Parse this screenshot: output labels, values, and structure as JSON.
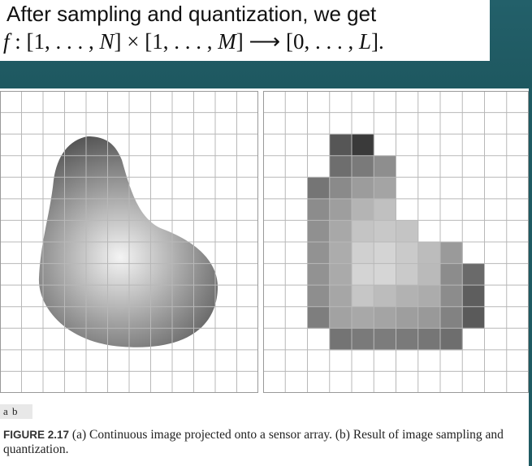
{
  "slide": {
    "title_line1": "After sampling and quantization, we get",
    "formula": {
      "f": "f",
      "colon": " : [1, . . . , ",
      "N": "N",
      "times": "] × [1, . . . , ",
      "M": "M",
      "arrow": "] ⟶ [0, . . . , ",
      "L": "L",
      "end": "]."
    }
  },
  "figure": {
    "sublabels": "a b",
    "caption_label": "FIGURE 2.17",
    "caption_text": " (a) Continuous image projected onto a sensor array. (b) Result of image sampling and quantization."
  },
  "grid": {
    "cols": 12,
    "rows": 14,
    "line_color": "#b8b8b8"
  },
  "quantized_cells": [
    {
      "r": 2,
      "c": 3,
      "v": "#565656"
    },
    {
      "r": 2,
      "c": 4,
      "v": "#3a3a3a"
    },
    {
      "r": 3,
      "c": 3,
      "v": "#6e6e6e"
    },
    {
      "r": 3,
      "c": 4,
      "v": "#7a7a7a"
    },
    {
      "r": 3,
      "c": 5,
      "v": "#8e8e8e"
    },
    {
      "r": 4,
      "c": 2,
      "v": "#757575"
    },
    {
      "r": 4,
      "c": 3,
      "v": "#8a8a8a"
    },
    {
      "r": 4,
      "c": 4,
      "v": "#9c9c9c"
    },
    {
      "r": 4,
      "c": 5,
      "v": "#a4a4a4"
    },
    {
      "r": 5,
      "c": 2,
      "v": "#8c8c8c"
    },
    {
      "r": 5,
      "c": 3,
      "v": "#9e9e9e"
    },
    {
      "r": 5,
      "c": 4,
      "v": "#b4b4b4"
    },
    {
      "r": 5,
      "c": 5,
      "v": "#c0c0c0"
    },
    {
      "r": 6,
      "c": 2,
      "v": "#909090"
    },
    {
      "r": 6,
      "c": 3,
      "v": "#a8a8a8"
    },
    {
      "r": 6,
      "c": 4,
      "v": "#c4c4c4"
    },
    {
      "r": 6,
      "c": 5,
      "v": "#c8c8c8"
    },
    {
      "r": 6,
      "c": 6,
      "v": "#c4c4c4"
    },
    {
      "r": 7,
      "c": 2,
      "v": "#929292"
    },
    {
      "r": 7,
      "c": 3,
      "v": "#acacac"
    },
    {
      "r": 7,
      "c": 4,
      "v": "#d0d0d0"
    },
    {
      "r": 7,
      "c": 5,
      "v": "#d4d4d4"
    },
    {
      "r": 7,
      "c": 6,
      "v": "#cacaca"
    },
    {
      "r": 7,
      "c": 7,
      "v": "#bcbcbc"
    },
    {
      "r": 7,
      "c": 8,
      "v": "#9a9a9a"
    },
    {
      "r": 8,
      "c": 2,
      "v": "#929292"
    },
    {
      "r": 8,
      "c": 3,
      "v": "#aaaaaa"
    },
    {
      "r": 8,
      "c": 4,
      "v": "#d4d4d4"
    },
    {
      "r": 8,
      "c": 5,
      "v": "#d6d6d6"
    },
    {
      "r": 8,
      "c": 6,
      "v": "#cacaca"
    },
    {
      "r": 8,
      "c": 7,
      "v": "#bababa"
    },
    {
      "r": 8,
      "c": 8,
      "v": "#8c8c8c"
    },
    {
      "r": 8,
      "c": 9,
      "v": "#6a6a6a"
    },
    {
      "r": 9,
      "c": 2,
      "v": "#8e8e8e"
    },
    {
      "r": 9,
      "c": 3,
      "v": "#a6a6a6"
    },
    {
      "r": 9,
      "c": 4,
      "v": "#c6c6c6"
    },
    {
      "r": 9,
      "c": 5,
      "v": "#bcbcbc"
    },
    {
      "r": 9,
      "c": 6,
      "v": "#b2b2b2"
    },
    {
      "r": 9,
      "c": 7,
      "v": "#acacac"
    },
    {
      "r": 9,
      "c": 8,
      "v": "#8c8c8c"
    },
    {
      "r": 9,
      "c": 9,
      "v": "#5e5e5e"
    },
    {
      "r": 10,
      "c": 2,
      "v": "#7e7e7e"
    },
    {
      "r": 10,
      "c": 3,
      "v": "#a2a2a2"
    },
    {
      "r": 10,
      "c": 4,
      "v": "#a8a8a8"
    },
    {
      "r": 10,
      "c": 5,
      "v": "#a4a4a4"
    },
    {
      "r": 10,
      "c": 6,
      "v": "#9e9e9e"
    },
    {
      "r": 10,
      "c": 7,
      "v": "#999999"
    },
    {
      "r": 10,
      "c": 8,
      "v": "#828282"
    },
    {
      "r": 10,
      "c": 9,
      "v": "#5a5a5a"
    },
    {
      "r": 11,
      "c": 3,
      "v": "#747474"
    },
    {
      "r": 11,
      "c": 4,
      "v": "#7a7a7a"
    },
    {
      "r": 11,
      "c": 5,
      "v": "#7c7c7c"
    },
    {
      "r": 11,
      "c": 6,
      "v": "#7a7a7a"
    },
    {
      "r": 11,
      "c": 7,
      "v": "#767676"
    },
    {
      "r": 11,
      "c": 8,
      "v": "#6e6e6e"
    }
  ]
}
